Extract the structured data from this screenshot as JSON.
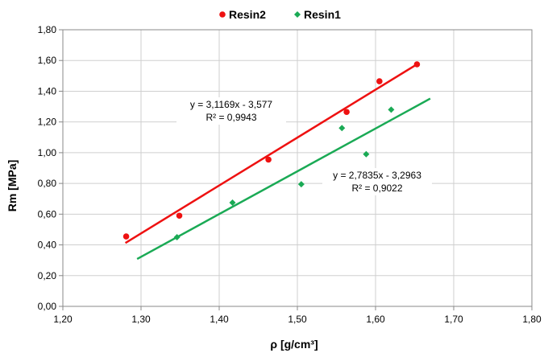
{
  "chart_data": {
    "type": "scatter",
    "xlabel": "ρ  [g/cm³]",
    "ylabel": "Rm  [MPa]",
    "xlim": [
      1.2,
      1.8
    ],
    "ylim": [
      0.0,
      1.8
    ],
    "x_ticks": [
      "1,20",
      "1,30",
      "1,40",
      "1,50",
      "1,60",
      "1,70",
      "1,80"
    ],
    "y_ticks": [
      "0,00",
      "0,20",
      "0,40",
      "0,60",
      "0,80",
      "1,00",
      "1,20",
      "1,40",
      "1,60",
      "1,80"
    ],
    "grid": true,
    "legend_position": "top",
    "series": [
      {
        "name": "Resin2",
        "color": "#ee1111",
        "marker": "circle",
        "x": [
          1.281,
          1.349,
          1.463,
          1.563,
          1.605,
          1.653
        ],
        "y": [
          0.455,
          0.59,
          0.955,
          1.265,
          1.465,
          1.575
        ],
        "trendline": {
          "slope": 3.1169,
          "intercept": -3.577,
          "x_range": [
            1.28,
            1.655
          ],
          "equation": "y = 3,1169x - 3,577",
          "r2": "R² = 0,9943"
        }
      },
      {
        "name": "Resin1",
        "color": "#1aaa55",
        "marker": "diamond",
        "x": [
          1.346,
          1.417,
          1.505,
          1.557,
          1.588,
          1.62
        ],
        "y": [
          0.45,
          0.675,
          0.795,
          1.16,
          0.99,
          1.28
        ],
        "trendline": {
          "slope": 2.7835,
          "intercept": -3.2963,
          "x_range": [
            1.295,
            1.67
          ],
          "equation": "y = 2,7835x - 3,2963",
          "r2": "R² = 0,9022"
        }
      }
    ]
  }
}
